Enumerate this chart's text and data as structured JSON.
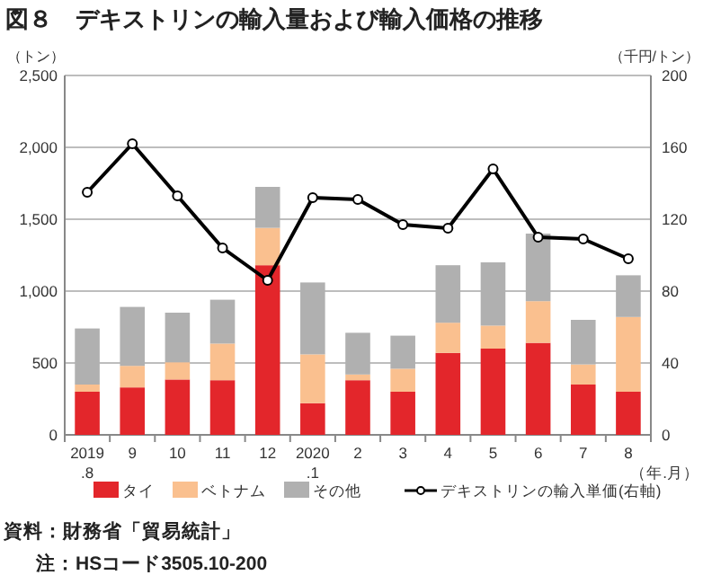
{
  "chart_data": {
    "type": "bar",
    "title": "図８　デキストリンの輸入量および輸入価格の推移",
    "ylabel": "（トン）",
    "y2label": "（千円/トン）",
    "xlabel": "（年.月）",
    "categories": [
      "2019\n.8",
      "9",
      "10",
      "11",
      "12",
      "2020\n.1",
      "2",
      "3",
      "4",
      "5",
      "6",
      "7",
      "8"
    ],
    "stacked": true,
    "series": [
      {
        "name": "タイ",
        "color": "#e3262b",
        "values": [
          300,
          330,
          385,
          380,
          1180,
          220,
          380,
          300,
          570,
          600,
          640,
          350,
          300
        ]
      },
      {
        "name": "ベトナム",
        "color": "#fac08f",
        "values": [
          50,
          150,
          120,
          255,
          260,
          340,
          40,
          160,
          210,
          160,
          290,
          140,
          520
        ]
      },
      {
        "name": "その他",
        "color": "#b0b0b0",
        "values": [
          390,
          410,
          345,
          305,
          285,
          500,
          290,
          230,
          400,
          440,
          470,
          310,
          290
        ]
      },
      {
        "name": "デキストリンの輸入単価(右軸)",
        "type": "line",
        "axis": "y2",
        "color": "#000000",
        "values": [
          135,
          162,
          133,
          104,
          86,
          132,
          131,
          117,
          115,
          148,
          110,
          109,
          98
        ]
      }
    ],
    "ylim": [
      0,
      2500
    ],
    "yticks": [
      0,
      {
        "value": 500,
        "label": "500"
      },
      {
        "value": 1000,
        "label": "1,000"
      },
      {
        "value": 1500,
        "label": "1,500"
      },
      {
        "value": 2000,
        "label": "2,000"
      },
      {
        "value": 2500,
        "label": "2,500"
      }
    ],
    "y2lim": [
      0,
      200
    ],
    "y2ticks": [
      0,
      40,
      80,
      120,
      160,
      200
    ],
    "grid": "y",
    "legend": "bottom",
    "marker": "circle",
    "line_style": "solid",
    "annotations": [
      "資料：財務省「貿易統計」",
      "注：HSコード3505.10-200"
    ]
  }
}
